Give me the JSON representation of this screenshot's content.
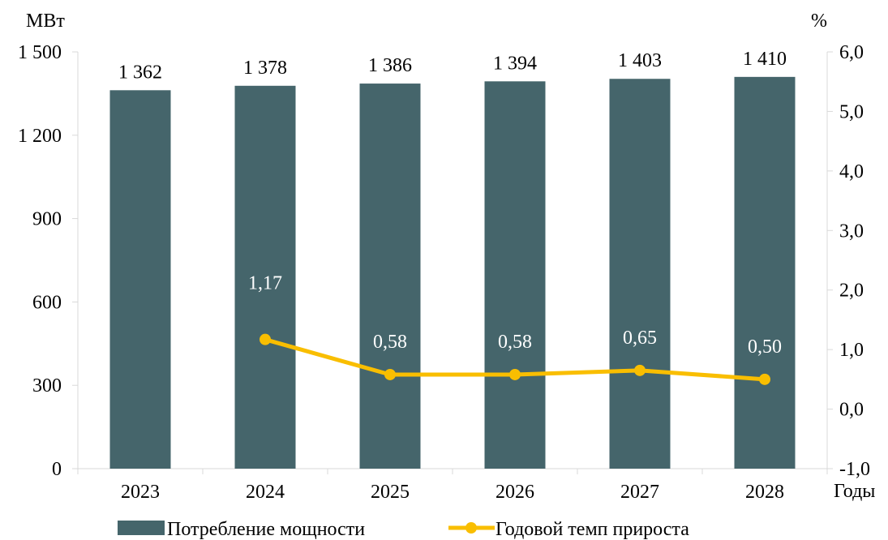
{
  "chart_data": {
    "type": "bar",
    "categories": [
      "2023",
      "2024",
      "2025",
      "2026",
      "2027",
      "2028"
    ],
    "series": [
      {
        "name": "Потребление мощности",
        "type": "bar",
        "axis": "left",
        "values": [
          1362,
          1378,
          1386,
          1394,
          1403,
          1410
        ],
        "labels": [
          "1 362",
          "1 378",
          "1 386",
          "1 394",
          "1 403",
          "1 410"
        ],
        "color": "#45656B"
      },
      {
        "name": "Годовой темп прироста",
        "type": "line",
        "axis": "right",
        "values": [
          null,
          1.17,
          0.58,
          0.58,
          0.65,
          0.5
        ],
        "labels": [
          "",
          "1,17",
          "0,58",
          "0,58",
          "0,65",
          "0,50"
        ],
        "color": "#F9BE00"
      }
    ],
    "y_left": {
      "unit": "МВт",
      "range": [
        0,
        1500
      ],
      "ticks": [
        0,
        300,
        600,
        900,
        1200,
        1500
      ],
      "tick_labels": [
        "0",
        "300",
        "600",
        "900",
        "1 200",
        "1 500"
      ]
    },
    "y_right": {
      "unit": "%",
      "range": [
        -1.0,
        6.0
      ],
      "ticks": [
        -1,
        0,
        1,
        2,
        3,
        4,
        5,
        6
      ],
      "tick_labels": [
        "-1,0",
        "0,0",
        "1,0",
        "2,0",
        "3,0",
        "4,0",
        "5,0",
        "6,0"
      ]
    },
    "xlabel": "Годы",
    "legend_position": "bottom",
    "grid": false,
    "axis_color": "#D9D9D9"
  }
}
